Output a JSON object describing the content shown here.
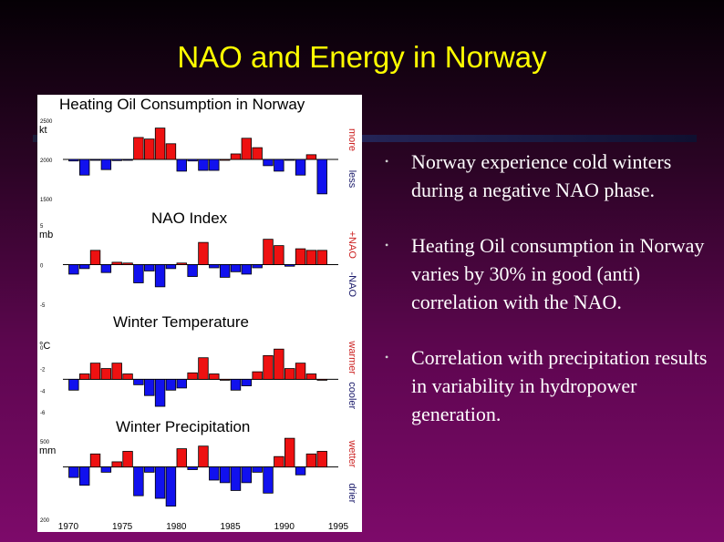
{
  "slide": {
    "title": "NAO and Energy in Norway",
    "bullets": [
      "Norway experience cold winters during a negative NAO phase.",
      "Heating Oil consumption in Norway varies by 30% in good (anti) correlation with the NAO.",
      "Correlation with precipitation results in variability in hydropower generation."
    ]
  },
  "colors": {
    "positive": "#ee1111",
    "negative": "#1111ee",
    "title": "#ffff00",
    "side_label": "#cc2222"
  },
  "chart_data": [
    {
      "type": "bar",
      "title": "Heating Oil Consumption in Norway",
      "unit": "kt",
      "yticks": [
        "2500",
        "2000",
        "1500"
      ],
      "ylim": [
        1500,
        2500
      ],
      "baseline": 2000,
      "side_labels": {
        "top": "more",
        "bottom": "less"
      },
      "x": [
        1970,
        1971,
        1972,
        1973,
        1974,
        1975,
        1976,
        1977,
        1978,
        1979,
        1980,
        1981,
        1982,
        1983,
        1984,
        1985,
        1986,
        1987,
        1988,
        1989,
        1990,
        1991,
        1992,
        1993
      ],
      "values": [
        1980,
        1800,
        1990,
        1870,
        1985,
        1990,
        2280,
        2260,
        2400,
        2200,
        1850,
        1980,
        1860,
        1860,
        2000,
        2070,
        2270,
        2150,
        1920,
        1850,
        1990,
        1800,
        2060,
        1560
      ]
    },
    {
      "type": "bar",
      "title": "NAO Index",
      "unit": "mb",
      "yticks": [
        "5",
        "0",
        "-5"
      ],
      "ylim": [
        -5,
        5
      ],
      "baseline": 0,
      "side_labels": {
        "top": "+NAO",
        "bottom": "-NAO"
      },
      "x": [
        1970,
        1971,
        1972,
        1973,
        1974,
        1975,
        1976,
        1977,
        1978,
        1979,
        1980,
        1981,
        1982,
        1983,
        1984,
        1985,
        1986,
        1987,
        1988,
        1989,
        1990,
        1991,
        1992,
        1993
      ],
      "values": [
        -1.2,
        -0.5,
        1.8,
        -1.0,
        0.3,
        0.2,
        -2.3,
        -0.8,
        -2.8,
        -0.5,
        0.2,
        -1.5,
        2.8,
        -0.4,
        -1.6,
        -0.9,
        -1.2,
        -0.4,
        3.2,
        2.4,
        -0.2,
        2.0,
        1.8,
        1.8
      ]
    },
    {
      "type": "bar",
      "title": "Winter Temperature",
      "unit": "°C",
      "yticks": [
        "0",
        "-2",
        "-4",
        "-6"
      ],
      "ylim": [
        -6,
        1
      ],
      "baseline": -3,
      "side_labels": {
        "top": "warmer",
        "bottom": "cooler"
      },
      "x": [
        1970,
        1971,
        1972,
        1973,
        1974,
        1975,
        1976,
        1977,
        1978,
        1979,
        1980,
        1981,
        1982,
        1983,
        1984,
        1985,
        1986,
        1987,
        1988,
        1989,
        1990,
        1991,
        1992,
        1993
      ],
      "values": [
        -4.0,
        -2.5,
        -1.5,
        -2.0,
        -1.5,
        -2.5,
        -3.5,
        -4.5,
        -5.5,
        -4.0,
        -3.8,
        -2.4,
        -1.0,
        -2.5,
        -3.0,
        -4.0,
        -3.6,
        -2.3,
        -0.8,
        -0.2,
        -2.0,
        -1.5,
        -2.5,
        -3.0
      ]
    },
    {
      "type": "bar",
      "title": "Winter Precipitation",
      "unit": "mm",
      "yticks": [
        "500",
        "200"
      ],
      "ylim": [
        200,
        500
      ],
      "baseline": 400,
      "side_labels": {
        "top": "wetter",
        "bottom": "drier"
      },
      "x": [
        1970,
        1971,
        1972,
        1973,
        1974,
        1975,
        1976,
        1977,
        1978,
        1979,
        1980,
        1981,
        1982,
        1983,
        1984,
        1985,
        1986,
        1987,
        1988,
        1989,
        1990,
        1991,
        1992,
        1993
      ],
      "values": [
        360,
        330,
        450,
        380,
        420,
        460,
        290,
        380,
        280,
        250,
        470,
        390,
        480,
        350,
        340,
        310,
        340,
        380,
        300,
        440,
        510,
        370,
        450,
        460
      ],
      "xticks": [
        "1970",
        "1975",
        "1980",
        "1985",
        "1990",
        "1995"
      ]
    }
  ]
}
